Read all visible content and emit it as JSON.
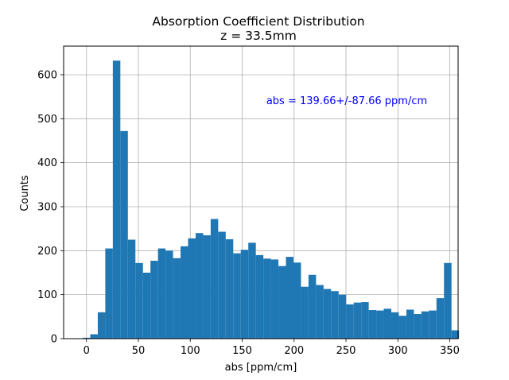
{
  "chart_data": {
    "type": "bar",
    "title": "Absorption Coefficient Distribution",
    "subtitle": "z = 33.5mm",
    "xlabel": "abs [ppm/cm]",
    "ylabel": "Counts",
    "xlim": [
      -22,
      358
    ],
    "ylim": [
      0,
      665
    ],
    "grid": true,
    "bar_color": "#1f77b4",
    "annotation": {
      "text": "abs = 139.66+/-87.66 ppm/cm",
      "color": "#0000ff"
    },
    "xticks": [
      {
        "value": 0,
        "label": "0"
      },
      {
        "value": 50,
        "label": "50"
      },
      {
        "value": 100,
        "label": "100"
      },
      {
        "value": 150,
        "label": "150"
      },
      {
        "value": 200,
        "label": "200"
      },
      {
        "value": 250,
        "label": "250"
      },
      {
        "value": 300,
        "label": "300"
      },
      {
        "value": 350,
        "label": "350"
      }
    ],
    "yticks": [
      {
        "value": 0,
        "label": "0"
      },
      {
        "value": 100,
        "label": "100"
      },
      {
        "value": 200,
        "label": "200"
      },
      {
        "value": 300,
        "label": "300"
      },
      {
        "value": 400,
        "label": "400"
      },
      {
        "value": 500,
        "label": "500"
      },
      {
        "value": 600,
        "label": "600"
      }
    ],
    "bin_start": -3.6,
    "bin_width": 7.25,
    "counts": [
      2,
      10,
      60,
      205,
      632,
      472,
      225,
      172,
      150,
      177,
      205,
      200,
      183,
      210,
      228,
      240,
      235,
      272,
      243,
      226,
      194,
      202,
      218,
      190,
      182,
      180,
      165,
      186,
      173,
      118,
      145,
      122,
      113,
      108,
      100,
      78,
      82,
      83,
      65,
      64,
      68,
      60,
      52,
      66,
      56,
      62,
      64,
      92,
      172,
      19
    ]
  }
}
